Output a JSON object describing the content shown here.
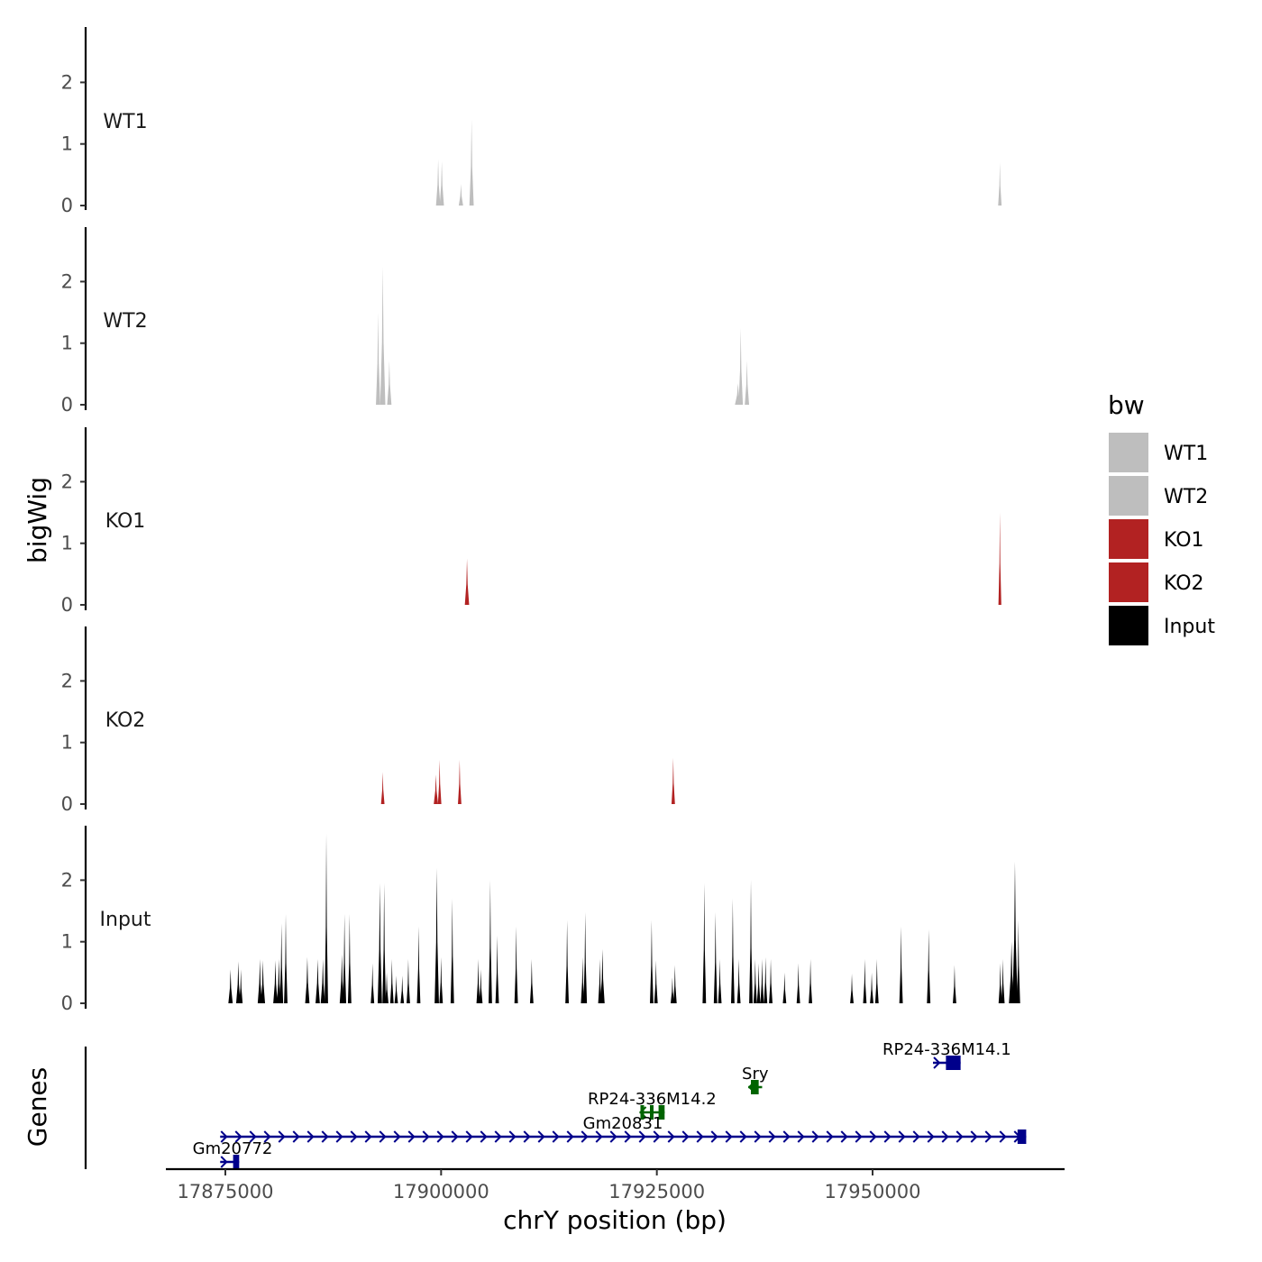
{
  "chart_data": {
    "type": "area",
    "y_axis_title": "bigWig",
    "genes_axis_title": "Genes",
    "x_axis_title": "chrY position (bp)",
    "xlim": [
      17867000,
      17971000
    ],
    "ylim": [
      0,
      2.8
    ],
    "x_ticks": [
      {
        "value": 17875000,
        "label": "17875000"
      },
      {
        "value": 17900000,
        "label": "17900000"
      },
      {
        "value": 17925000,
        "label": "17925000"
      },
      {
        "value": 17950000,
        "label": "17950000"
      }
    ],
    "y_ticks": [
      {
        "value": 0,
        "label": "0"
      },
      {
        "value": 1,
        "label": "1"
      },
      {
        "value": 2,
        "label": "2"
      }
    ],
    "legend": {
      "title": "bw",
      "entries": [
        {
          "label": "WT1",
          "color": "#bebebe"
        },
        {
          "label": "WT2",
          "color": "#bebebe"
        },
        {
          "label": "KO1",
          "color": "#b22222"
        },
        {
          "label": "KO2",
          "color": "#b22222"
        },
        {
          "label": "Input",
          "color": "#000000"
        }
      ]
    },
    "tracks": [
      {
        "name": "WT1",
        "color": "#bebebe",
        "peaks": [
          {
            "x": 17899660,
            "y": 0.75,
            "w": 500
          },
          {
            "x": 17900080,
            "y": 0.72,
            "w": 500
          },
          {
            "x": 17902300,
            "y": 0.35,
            "w": 500
          },
          {
            "x": 17903530,
            "y": 1.4,
            "w": 500
          },
          {
            "x": 17964750,
            "y": 0.7,
            "w": 400
          }
        ]
      },
      {
        "name": "WT2",
        "color": "#bebebe",
        "peaks": [
          {
            "x": 17892700,
            "y": 1.5,
            "w": 500
          },
          {
            "x": 17893240,
            "y": 2.25,
            "w": 600
          },
          {
            "x": 17894000,
            "y": 0.72,
            "w": 500
          },
          {
            "x": 17934400,
            "y": 0.35,
            "w": 700
          },
          {
            "x": 17934720,
            "y": 1.25,
            "w": 500
          },
          {
            "x": 17935440,
            "y": 0.72,
            "w": 500
          }
        ]
      },
      {
        "name": "KO1",
        "color": "#b22222",
        "peaks": [
          {
            "x": 17903000,
            "y": 0.75,
            "w": 500
          },
          {
            "x": 17964750,
            "y": 1.5,
            "w": 300
          }
        ]
      },
      {
        "name": "KO2",
        "color": "#b22222",
        "peaks": [
          {
            "x": 17893240,
            "y": 0.52,
            "w": 400
          },
          {
            "x": 17899400,
            "y": 0.48,
            "w": 500
          },
          {
            "x": 17899830,
            "y": 0.72,
            "w": 400
          },
          {
            "x": 17902150,
            "y": 0.72,
            "w": 400
          },
          {
            "x": 17926900,
            "y": 0.75,
            "w": 400
          }
        ]
      },
      {
        "name": "Input",
        "color": "#000000",
        "peaks": [
          {
            "x": 17875600,
            "y": 0.55,
            "w": 500
          },
          {
            "x": 17876500,
            "y": 0.68,
            "w": 500
          },
          {
            "x": 17876800,
            "y": 0.55,
            "w": 400
          },
          {
            "x": 17879000,
            "y": 0.72,
            "w": 500
          },
          {
            "x": 17879350,
            "y": 0.7,
            "w": 500
          },
          {
            "x": 17880800,
            "y": 0.7,
            "w": 500
          },
          {
            "x": 17881200,
            "y": 0.72,
            "w": 500
          },
          {
            "x": 17881500,
            "y": 1.3,
            "w": 400
          },
          {
            "x": 17882000,
            "y": 1.45,
            "w": 400
          },
          {
            "x": 17884500,
            "y": 0.75,
            "w": 500
          },
          {
            "x": 17885700,
            "y": 0.72,
            "w": 500
          },
          {
            "x": 17886300,
            "y": 0.72,
            "w": 500
          },
          {
            "x": 17886700,
            "y": 2.75,
            "w": 400
          },
          {
            "x": 17888500,
            "y": 0.8,
            "w": 500
          },
          {
            "x": 17888800,
            "y": 1.45,
            "w": 400
          },
          {
            "x": 17889400,
            "y": 1.45,
            "w": 400
          },
          {
            "x": 17892050,
            "y": 0.65,
            "w": 400
          },
          {
            "x": 17892900,
            "y": 1.95,
            "w": 500
          },
          {
            "x": 17893400,
            "y": 1.95,
            "w": 400
          },
          {
            "x": 17893700,
            "y": 0.5,
            "w": 400
          },
          {
            "x": 17894300,
            "y": 0.72,
            "w": 400
          },
          {
            "x": 17894800,
            "y": 0.45,
            "w": 400
          },
          {
            "x": 17895500,
            "y": 0.45,
            "w": 400
          },
          {
            "x": 17896200,
            "y": 0.72,
            "w": 400
          },
          {
            "x": 17897400,
            "y": 1.25,
            "w": 400
          },
          {
            "x": 17899500,
            "y": 2.2,
            "w": 500
          },
          {
            "x": 17900000,
            "y": 0.75,
            "w": 400
          },
          {
            "x": 17901300,
            "y": 1.7,
            "w": 400
          },
          {
            "x": 17904300,
            "y": 0.72,
            "w": 400
          },
          {
            "x": 17904600,
            "y": 0.55,
            "w": 400
          },
          {
            "x": 17905700,
            "y": 2.0,
            "w": 400
          },
          {
            "x": 17906500,
            "y": 1.1,
            "w": 400
          },
          {
            "x": 17908700,
            "y": 1.25,
            "w": 400
          },
          {
            "x": 17910500,
            "y": 0.72,
            "w": 400
          },
          {
            "x": 17914600,
            "y": 1.35,
            "w": 400
          },
          {
            "x": 17916400,
            "y": 0.75,
            "w": 400
          },
          {
            "x": 17916700,
            "y": 1.48,
            "w": 400
          },
          {
            "x": 17918400,
            "y": 0.72,
            "w": 400
          },
          {
            "x": 17918700,
            "y": 0.88,
            "w": 500
          },
          {
            "x": 17924400,
            "y": 1.35,
            "w": 400
          },
          {
            "x": 17924900,
            "y": 0.7,
            "w": 400
          },
          {
            "x": 17926800,
            "y": 0.42,
            "w": 400
          },
          {
            "x": 17927100,
            "y": 0.62,
            "w": 400
          },
          {
            "x": 17930500,
            "y": 1.95,
            "w": 400
          },
          {
            "x": 17931800,
            "y": 1.48,
            "w": 400
          },
          {
            "x": 17932300,
            "y": 0.72,
            "w": 400
          },
          {
            "x": 17933800,
            "y": 1.7,
            "w": 400
          },
          {
            "x": 17934500,
            "y": 0.72,
            "w": 400
          },
          {
            "x": 17935900,
            "y": 2.0,
            "w": 400
          },
          {
            "x": 17936400,
            "y": 0.72,
            "w": 400
          },
          {
            "x": 17936800,
            "y": 0.65,
            "w": 400
          },
          {
            "x": 17937200,
            "y": 0.72,
            "w": 400
          },
          {
            "x": 17937600,
            "y": 0.75,
            "w": 400
          },
          {
            "x": 17938200,
            "y": 0.72,
            "w": 400
          },
          {
            "x": 17939800,
            "y": 0.5,
            "w": 400
          },
          {
            "x": 17941400,
            "y": 0.65,
            "w": 400
          },
          {
            "x": 17942800,
            "y": 0.72,
            "w": 400
          },
          {
            "x": 17947600,
            "y": 0.48,
            "w": 400
          },
          {
            "x": 17949100,
            "y": 0.72,
            "w": 400
          },
          {
            "x": 17949900,
            "y": 0.5,
            "w": 400
          },
          {
            "x": 17950500,
            "y": 0.72,
            "w": 400
          },
          {
            "x": 17953300,
            "y": 1.25,
            "w": 400
          },
          {
            "x": 17956500,
            "y": 1.2,
            "w": 400
          },
          {
            "x": 17959500,
            "y": 0.62,
            "w": 400
          },
          {
            "x": 17964800,
            "y": 0.65,
            "w": 400
          },
          {
            "x": 17965100,
            "y": 0.72,
            "w": 400
          },
          {
            "x": 17966100,
            "y": 1.0,
            "w": 600
          },
          {
            "x": 17966500,
            "y": 2.3,
            "w": 600
          },
          {
            "x": 17966900,
            "y": 1.35,
            "w": 400
          }
        ]
      }
    ],
    "genes": [
      {
        "name": "RP24-336M14.1",
        "start": 17957000,
        "end": 17960200,
        "row": 3,
        "color": "#00008b",
        "strand": "+",
        "exons": [
          [
            17958500,
            17960200
          ]
        ]
      },
      {
        "name": "Sry",
        "start": 17935600,
        "end": 17937200,
        "row": 2,
        "color": "#006400",
        "strand": "-",
        "exons": [
          [
            17935900,
            17936800
          ]
        ]
      },
      {
        "name": "RP24-336M14.2",
        "start": 17923000,
        "end": 17925900,
        "row": 1,
        "color": "#006400",
        "strand": "-",
        "exons": [
          [
            17923100,
            17923400
          ],
          [
            17924200,
            17924500
          ],
          [
            17925200,
            17925900
          ]
        ]
      },
      {
        "name": "Gm20831",
        "start": 17874400,
        "end": 17967800,
        "row": 0,
        "color": "#00008b",
        "strand": "+",
        "exons": [
          [
            17966800,
            17967800
          ]
        ]
      },
      {
        "name": "Gm20772",
        "start": 17874400,
        "end": 17876600,
        "row": -1,
        "color": "#00008b",
        "strand": "+",
        "exons": [
          [
            17875900,
            17876600
          ]
        ]
      }
    ]
  }
}
